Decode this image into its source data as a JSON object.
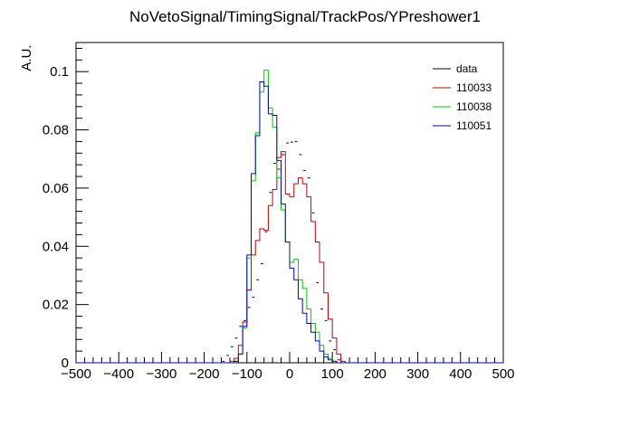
{
  "chart_data": {
    "type": "histogram",
    "title": "NoVetoSignal/TimingSignal/TrackPos/YPreshower1",
    "xlabel": "",
    "ylabel": "A.U.",
    "xlim": [
      -500,
      500
    ],
    "ylim": [
      0,
      0.11
    ],
    "bin_width": 10,
    "x_ticks": [
      -500,
      -400,
      -300,
      -200,
      -100,
      0,
      100,
      200,
      300,
      400,
      500
    ],
    "x_tick_labels": [
      "−500",
      "−400",
      "−300",
      "−200",
      "−100",
      "0",
      "100",
      "200",
      "300",
      "400",
      "500"
    ],
    "y_ticks": [
      0,
      0.02,
      0.04,
      0.06,
      0.08,
      0.1
    ],
    "y_tick_labels": [
      "0",
      "0.02",
      "0.04",
      "0.06",
      "0.08",
      "0.1"
    ],
    "grid": false,
    "legend_position": "top-right",
    "legend": [
      {
        "label": "data",
        "color": "#000000"
      },
      {
        "label": "110033",
        "color": "#cc0000"
      },
      {
        "label": "110038",
        "color": "#00cc00"
      },
      {
        "label": "110051",
        "color": "#0000cc"
      }
    ],
    "series": [
      {
        "name": "data",
        "style": "points",
        "color": "#000000",
        "bin_starts": [
          -160,
          -150,
          -140,
          -130,
          -120,
          -110,
          -100,
          -90,
          -80,
          -70,
          -60,
          -50,
          -40,
          -30,
          -20,
          -10,
          0,
          10,
          20,
          30,
          40,
          50,
          60,
          70,
          80,
          90,
          100,
          110
        ],
        "values": [
          0.0005,
          0.0025,
          0.0055,
          0.0085,
          0.0125,
          0.0145,
          0.019,
          0.0225,
          0.0285,
          0.034,
          0.045,
          0.0585,
          0.0685,
          0.0665,
          0.0715,
          0.0755,
          0.0758,
          0.076,
          0.0715,
          0.066,
          0.0635,
          0.0515,
          0.0275,
          0.0185,
          0.0145,
          0.0075,
          0.0045,
          0.001
        ]
      },
      {
        "name": "110033",
        "style": "step",
        "color": "#cc0000",
        "bin_starts": [
          -140,
          -130,
          -120,
          -110,
          -100,
          -90,
          -80,
          -70,
          -60,
          -50,
          -40,
          -30,
          -20,
          -10,
          0,
          10,
          20,
          30,
          40,
          50,
          60,
          70,
          80,
          90,
          100,
          110,
          120
        ],
        "values": [
          0.0005,
          0.0015,
          0.006,
          0.014,
          0.025,
          0.037,
          0.042,
          0.046,
          0.0455,
          0.054,
          0.0595,
          0.0705,
          0.0725,
          0.058,
          0.057,
          0.0615,
          0.0635,
          0.0615,
          0.057,
          0.0485,
          0.0415,
          0.0345,
          0.024,
          0.015,
          0.0085,
          0.003,
          0.0005
        ]
      },
      {
        "name": "110038",
        "style": "step",
        "color": "#00cc00",
        "bin_starts": [
          -130,
          -120,
          -110,
          -100,
          -90,
          -80,
          -70,
          -60,
          -50,
          -40,
          -30,
          -20,
          -10,
          0,
          10,
          20,
          30,
          40,
          50,
          60,
          70,
          80,
          90,
          100
        ],
        "values": [
          0.0005,
          0.003,
          0.012,
          0.036,
          0.0625,
          0.079,
          0.093,
          0.1005,
          0.0875,
          0.081,
          0.0635,
          0.0525,
          0.0415,
          0.0345,
          0.0355,
          0.0285,
          0.0255,
          0.0185,
          0.0135,
          0.0105,
          0.006,
          0.003,
          0.0015,
          0.0005
        ]
      },
      {
        "name": "110051",
        "style": "step",
        "color": "#0000cc",
        "bin_starts": [
          -130,
          -120,
          -110,
          -100,
          -90,
          -80,
          -70,
          -60,
          -50,
          -40,
          -30,
          -20,
          -10,
          0,
          10,
          20,
          30,
          40,
          50,
          60,
          70,
          80,
          90,
          100
        ],
        "values": [
          0.0005,
          0.003,
          0.0125,
          0.037,
          0.065,
          0.078,
          0.0965,
          0.095,
          0.0855,
          0.085,
          0.0695,
          0.0545,
          0.0415,
          0.0325,
          0.0285,
          0.022,
          0.017,
          0.0135,
          0.0105,
          0.0075,
          0.004,
          0.002,
          0.001,
          0.0005
        ]
      }
    ]
  }
}
